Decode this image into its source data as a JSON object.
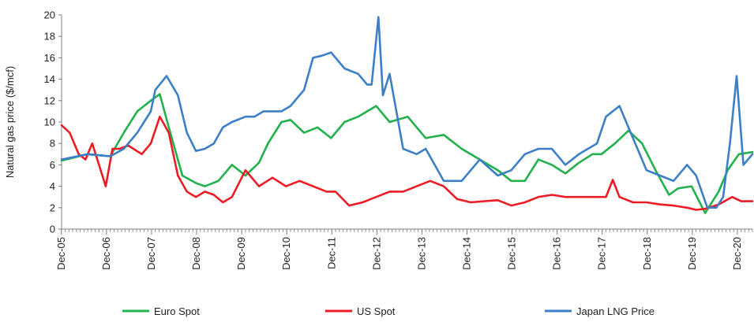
{
  "chart_data": {
    "type": "line",
    "title": "",
    "ylabel": "Natural gas price ($/mcf)",
    "xlabel": "",
    "ylim": [
      0,
      20
    ],
    "yticks": [
      0,
      2,
      4,
      6,
      8,
      10,
      12,
      14,
      16,
      18,
      20
    ],
    "xlim": [
      2005.92,
      2021.25
    ],
    "xtick_labels": [
      "Dec-05",
      "Dec-06",
      "Dec-07",
      "Dec-08",
      "Dec-09",
      "Dec-10",
      "Dec-11",
      "Dec-12",
      "Dec-13",
      "Dec-14",
      "Dec-15",
      "Dec-16",
      "Dec-17",
      "Dec-18",
      "Dec-19",
      "Dec-20"
    ],
    "grid": false,
    "legend_placement": "bottom",
    "series": [
      {
        "name": "Euro Spot",
        "color": "#22b14c",
        "x": [
          2005.92,
          2006.5,
          2007.0,
          2007.3,
          2007.6,
          2007.9,
          2008.1,
          2008.3,
          2008.6,
          2008.9,
          2009.1,
          2009.4,
          2009.7,
          2010.0,
          2010.3,
          2010.5,
          2010.8,
          2011.0,
          2011.3,
          2011.6,
          2011.9,
          2012.2,
          2012.5,
          2012.9,
          2013.2,
          2013.6,
          2014.0,
          2014.4,
          2014.8,
          2015.2,
          2015.6,
          2015.9,
          2016.2,
          2016.5,
          2016.8,
          2017.1,
          2017.4,
          2017.7,
          2017.9,
          2018.2,
          2018.5,
          2018.8,
          2019.1,
          2019.4,
          2019.6,
          2019.9,
          2020.2,
          2020.5,
          2020.7,
          2020.95,
          2021.25
        ],
        "values": [
          6.4,
          7.0,
          6.8,
          9.0,
          11.0,
          12.0,
          12.6,
          9.5,
          5.0,
          4.3,
          4.0,
          4.5,
          6.0,
          5.0,
          6.2,
          8.0,
          10.0,
          10.2,
          9.0,
          9.5,
          8.5,
          10.0,
          10.5,
          11.5,
          10.0,
          10.5,
          8.5,
          8.8,
          7.5,
          6.5,
          5.5,
          4.5,
          4.5,
          6.5,
          6.0,
          5.2,
          6.2,
          7.0,
          7.0,
          8.0,
          9.2,
          8.0,
          5.5,
          3.2,
          3.8,
          4.0,
          1.5,
          3.5,
          5.5,
          7.0,
          7.2
        ]
      },
      {
        "name": "US Spot",
        "color": "#ec1c24",
        "x": [
          2005.92,
          2006.1,
          2006.3,
          2006.45,
          2006.6,
          2006.75,
          2006.9,
          2007.05,
          2007.2,
          2007.4,
          2007.7,
          2007.9,
          2008.1,
          2008.3,
          2008.5,
          2008.7,
          2008.9,
          2009.1,
          2009.3,
          2009.5,
          2009.7,
          2010.0,
          2010.3,
          2010.6,
          2010.9,
          2011.2,
          2011.5,
          2011.8,
          2012.0,
          2012.3,
          2012.6,
          2012.9,
          2013.2,
          2013.5,
          2013.8,
          2014.1,
          2014.4,
          2014.7,
          2015.0,
          2015.3,
          2015.6,
          2015.9,
          2016.2,
          2016.5,
          2016.8,
          2017.1,
          2017.4,
          2017.7,
          2018.0,
          2018.15,
          2018.3,
          2018.6,
          2018.9,
          2019.2,
          2019.5,
          2019.8,
          2020.0,
          2020.2,
          2020.5,
          2020.8,
          2021.0,
          2021.25
        ],
        "values": [
          9.7,
          9.0,
          7.0,
          6.5,
          8.0,
          6.0,
          4.0,
          7.5,
          7.5,
          7.8,
          7.0,
          8.0,
          10.5,
          9.0,
          5.0,
          3.5,
          3.0,
          3.5,
          3.2,
          2.5,
          3.0,
          5.5,
          4.0,
          4.8,
          4.0,
          4.5,
          4.0,
          3.5,
          3.5,
          2.2,
          2.5,
          3.0,
          3.5,
          3.5,
          4.0,
          4.5,
          4.0,
          2.8,
          2.5,
          2.6,
          2.7,
          2.2,
          2.5,
          3.0,
          3.2,
          3.0,
          3.0,
          3.0,
          3.0,
          4.6,
          3.0,
          2.5,
          2.5,
          2.3,
          2.2,
          2.0,
          1.8,
          1.9,
          2.3,
          3.0,
          2.6,
          2.6
        ]
      },
      {
        "name": "Japan LNG Price",
        "color": "#3d7fc6",
        "x": [
          2005.92,
          2006.5,
          2007.0,
          2007.3,
          2007.6,
          2007.9,
          2008.0,
          2008.25,
          2008.5,
          2008.7,
          2008.9,
          2009.1,
          2009.3,
          2009.5,
          2009.7,
          2010.0,
          2010.2,
          2010.4,
          2010.6,
          2010.8,
          2011.0,
          2011.3,
          2011.5,
          2011.7,
          2011.9,
          2012.2,
          2012.5,
          2012.7,
          2012.8,
          2012.95,
          2013.05,
          2013.2,
          2013.5,
          2013.8,
          2014.0,
          2014.4,
          2014.8,
          2015.2,
          2015.6,
          2015.9,
          2016.2,
          2016.5,
          2016.8,
          2017.1,
          2017.4,
          2017.6,
          2017.8,
          2018.0,
          2018.3,
          2018.6,
          2018.9,
          2019.2,
          2019.5,
          2019.8,
          2020.0,
          2020.25,
          2020.45,
          2020.6,
          2020.75,
          2020.9,
          2021.05,
          2021.25
        ],
        "values": [
          6.5,
          7.0,
          6.8,
          7.5,
          9.0,
          11.0,
          13.0,
          14.3,
          12.5,
          9.0,
          7.3,
          7.5,
          8.0,
          9.5,
          10.0,
          10.5,
          10.5,
          11.0,
          11.0,
          11.0,
          11.5,
          13.0,
          16.0,
          16.2,
          16.5,
          15.0,
          14.5,
          13.5,
          13.5,
          19.8,
          12.5,
          14.5,
          7.5,
          7.0,
          7.5,
          4.5,
          4.5,
          6.5,
          5.0,
          5.5,
          7.0,
          7.5,
          7.5,
          6.0,
          7.0,
          7.5,
          8.0,
          10.5,
          11.5,
          8.5,
          5.5,
          5.0,
          4.5,
          6.0,
          5.0,
          2.0,
          2.0,
          3.0,
          8.0,
          14.3,
          6.0,
          7.0
        ]
      }
    ]
  }
}
